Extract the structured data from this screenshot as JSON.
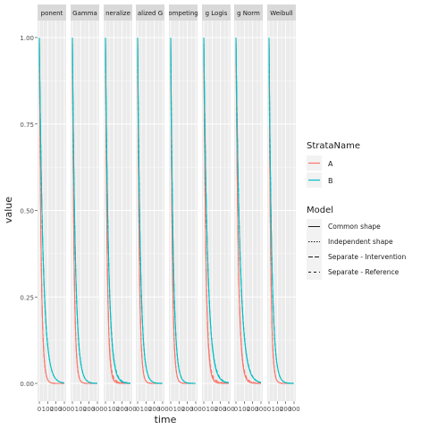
{
  "chart_data": {
    "type": "line",
    "ylabel": "value",
    "xlabel": "time",
    "ylim": [
      0,
      1
    ],
    "y_ticks": [
      "0.00",
      "0.25",
      "0.50",
      "0.75",
      "1.00"
    ],
    "x_ticks": [
      "0",
      "100",
      "200",
      "300"
    ],
    "xlim": [
      0,
      300
    ],
    "grid": true,
    "legend_position": "right",
    "colors": {
      "A": "#F8766D",
      "B": "#00BFC4"
    },
    "panels": [
      {
        "strip": "ponent",
        "rates": {
          "A": 0.045,
          "B": 0.022
        },
        "separate_offset": 0.0
      },
      {
        "strip": "Gamma",
        "rates": {
          "A": 0.05,
          "B": 0.028
        },
        "separate_offset": 0.0
      },
      {
        "strip": "neralize",
        "rates": {
          "A": 0.048,
          "B": 0.027
        },
        "separate_offset": 0.02
      },
      {
        "strip": "alized G",
        "rates": {
          "A": 0.05,
          "B": 0.03
        },
        "separate_offset": 0.0
      },
      {
        "strip": "ompeting",
        "rates": {
          "A": 0.05,
          "B": 0.032
        },
        "separate_offset": 0.0
      },
      {
        "strip": "g Logis",
        "rates": {
          "A": 0.04,
          "B": 0.022
        },
        "separate_offset": 0.025
      },
      {
        "strip": "g Norm",
        "rates": {
          "A": 0.035,
          "B": 0.02
        },
        "separate_offset": 0.02
      },
      {
        "strip": "Weibull",
        "rates": {
          "A": 0.05,
          "B": 0.03
        },
        "separate_offset": 0.0
      }
    ],
    "legend": {
      "strata_title": "StrataName",
      "strata": [
        "A",
        "B"
      ],
      "model_title": "Model",
      "models": [
        {
          "label": "Common shape",
          "dash": ""
        },
        {
          "label": "Independent shape",
          "dash": "1.5,1.5"
        },
        {
          "label": "Separate - Intervention",
          "dash": "5,2"
        },
        {
          "label": "Separate - Reference",
          "dash": "3,3"
        }
      ]
    }
  }
}
